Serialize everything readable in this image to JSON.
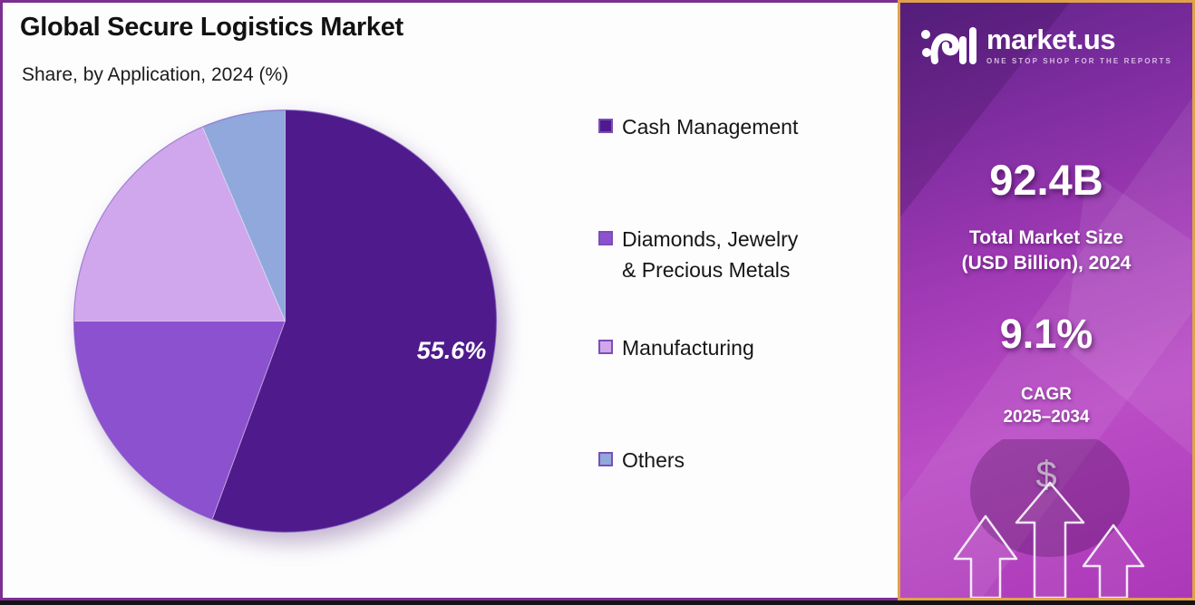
{
  "header": {
    "title": "Global Secure Logistics Market",
    "subtitle": "Share, by Application, 2024 (%)"
  },
  "chart_data": {
    "type": "pie",
    "title": "Global Secure Logistics Market",
    "subtitle": "Share, by Application, 2024 (%)",
    "unit": "% share",
    "labels": [
      "Cash Management",
      "Diamonds, Jewelry & Precious Metals",
      "Manufacturing",
      "Others"
    ],
    "values": [
      55.6,
      19.4,
      18.6,
      6.4
    ],
    "colors": [
      "#4e1a8c",
      "#8c51ce",
      "#d0a7ec",
      "#90a8dc"
    ],
    "data_labels": [
      "55.6%",
      "",
      "",
      ""
    ],
    "start_angle_deg": 0,
    "direction": "clockwise",
    "legend_position": "right"
  },
  "legend": {
    "items": [
      {
        "label": "Cash Management",
        "display": "Cash Management",
        "color": "#4e1a8c"
      },
      {
        "label": "Diamonds, Jewelry & Precious Metals",
        "display": "Diamonds, Jewelry\n& Precious Metals",
        "color": "#8c51ce"
      },
      {
        "label": "Manufacturing",
        "display": "Manufacturing",
        "color": "#d0a7ec"
      },
      {
        "label": "Others",
        "display": "Others",
        "color": "#90a8dc"
      }
    ]
  },
  "sidebar": {
    "brand": {
      "name": "market.us",
      "tagline": "ONE STOP SHOP FOR THE REPORTS"
    },
    "market_size": {
      "value": "92.4B",
      "label": "Total Market Size\n(USD Billion), 2024"
    },
    "cagr": {
      "value": "9.1%",
      "label": "CAGR\n2025–2034"
    },
    "dollar_symbol": "$"
  },
  "colors": {
    "frame_border": "#7b2f92",
    "sidebar_border": "#dfa24a",
    "slice_outline": "#7e57c2",
    "bottom_bar": "#141215"
  }
}
